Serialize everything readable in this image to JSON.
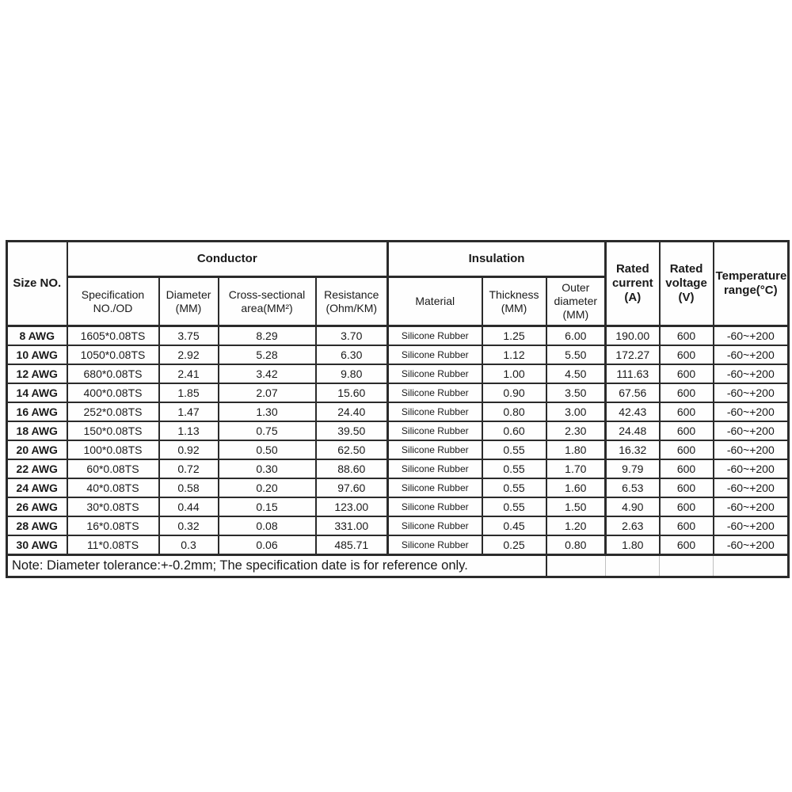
{
  "page": {
    "description": "Silicone rubber wire AWG specification table",
    "background": "#ffffff"
  },
  "colors": {
    "border": "#2b2b2b",
    "ghost_border": "#c0c0c0",
    "text": "#1a1a1a",
    "table_background": "#fefefe"
  },
  "table": {
    "header": {
      "size_no": "Size NO.",
      "conductor_group": "Conductor",
      "insulation_group": "Insulation",
      "specification": "Specification\nNO./OD",
      "diameter": "Diameter\n(MM)",
      "cross_sectional": "Cross-sectional\narea(MM²)",
      "resistance": "Resistance\n(Ohm/KM)",
      "material": "Material",
      "thickness": "Thickness\n(MM)",
      "outer_diameter": "Outer\ndiameter\n(MM)",
      "rated_current": "Rated\ncurrent\n(A)",
      "rated_voltage": "Rated\nvoltage\n(V)",
      "temperature_range": "Temperature\nrange(°C)"
    },
    "rows": [
      [
        "8 AWG",
        "1605*0.08TS",
        "3.75",
        "8.29",
        "3.70",
        "Silicone Rubber",
        "1.25",
        "6.00",
        "190.00",
        "600",
        "-60~+200"
      ],
      [
        "10 AWG",
        "1050*0.08TS",
        "2.92",
        "5.28",
        "6.30",
        "Silicone Rubber",
        "1.12",
        "5.50",
        "172.27",
        "600",
        "-60~+200"
      ],
      [
        "12 AWG",
        "680*0.08TS",
        "2.41",
        "3.42",
        "9.80",
        "Silicone Rubber",
        "1.00",
        "4.50",
        "111.63",
        "600",
        "-60~+200"
      ],
      [
        "14 AWG",
        "400*0.08TS",
        "1.85",
        "2.07",
        "15.60",
        "Silicone Rubber",
        "0.90",
        "3.50",
        "67.56",
        "600",
        "-60~+200"
      ],
      [
        "16 AWG",
        "252*0.08TS",
        "1.47",
        "1.30",
        "24.40",
        "Silicone Rubber",
        "0.80",
        "3.00",
        "42.43",
        "600",
        "-60~+200"
      ],
      [
        "18 AWG",
        "150*0.08TS",
        "1.13",
        "0.75",
        "39.50",
        "Silicone Rubber",
        "0.60",
        "2.30",
        "24.48",
        "600",
        "-60~+200"
      ],
      [
        "20 AWG",
        "100*0.08TS",
        "0.92",
        "0.50",
        "62.50",
        "Silicone Rubber",
        "0.55",
        "1.80",
        "16.32",
        "600",
        "-60~+200"
      ],
      [
        "22 AWG",
        "60*0.08TS",
        "0.72",
        "0.30",
        "88.60",
        "Silicone Rubber",
        "0.55",
        "1.70",
        "9.79",
        "600",
        "-60~+200"
      ],
      [
        "24 AWG",
        "40*0.08TS",
        "0.58",
        "0.20",
        "97.60",
        "Silicone Rubber",
        "0.55",
        "1.60",
        "6.53",
        "600",
        "-60~+200"
      ],
      [
        "26 AWG",
        "30*0.08TS",
        "0.44",
        "0.15",
        "123.00",
        "Silicone Rubber",
        "0.55",
        "1.50",
        "4.90",
        "600",
        "-60~+200"
      ],
      [
        "28 AWG",
        "16*0.08TS",
        "0.32",
        "0.08",
        "331.00",
        "Silicone Rubber",
        "0.45",
        "1.20",
        "2.63",
        "600",
        "-60~+200"
      ],
      [
        "30 AWG",
        "11*0.08TS",
        "0.3",
        "0.06",
        "485.71",
        "Silicone Rubber",
        "0.25",
        "0.80",
        "1.80",
        "600",
        "-60~+200"
      ]
    ],
    "note": "Note: Diameter tolerance:+-0.2mm; The specification date is for reference only."
  }
}
